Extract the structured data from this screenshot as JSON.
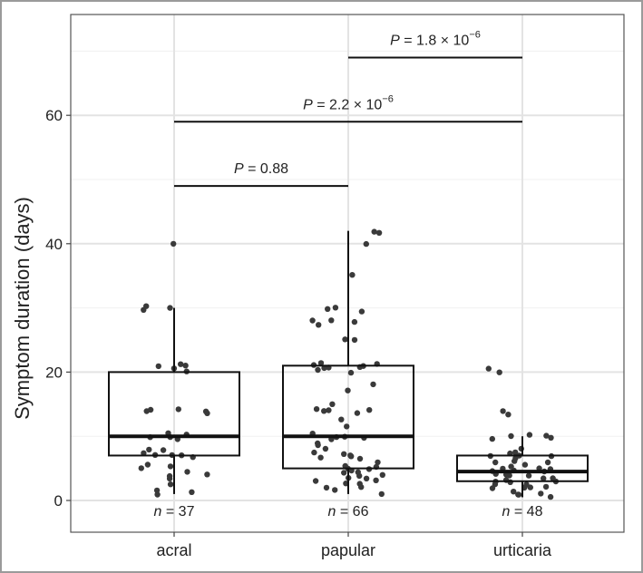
{
  "chart_data": {
    "type": "box",
    "ylabel": "Symptom duration (days)",
    "xlabel": "",
    "categories": [
      "acral",
      "papular",
      "urticaria"
    ],
    "ylim": [
      -4.5,
      75
    ],
    "yticks": [
      0,
      20,
      40,
      60
    ],
    "grid": true,
    "legend": "none",
    "colors": {
      "box_line": "#111111",
      "point": "#3a3a3a",
      "grid": "#e3e3e3",
      "frame": "#9a9a9a"
    },
    "boxes": [
      {
        "category": "acral",
        "n_label": "n = 37",
        "min": 1,
        "q1": 7,
        "median": 10,
        "q3": 20,
        "max": 30
      },
      {
        "category": "papular",
        "n_label": "n = 66",
        "min": 1,
        "q1": 5,
        "median": 10,
        "q3": 21,
        "max": 42
      },
      {
        "category": "urticaria",
        "n_label": "n = 48",
        "min": 0.5,
        "q1": 3,
        "median": 4.5,
        "q3": 7,
        "max": 10
      }
    ],
    "points": {
      "acral": [
        40,
        30.2,
        30,
        29.8,
        21.2,
        21,
        20.9,
        20.5,
        20,
        14.2,
        14,
        14,
        13.9,
        13.5,
        10.5,
        10.2,
        10,
        9.8,
        9.5,
        8,
        7.8,
        7.5,
        7.2,
        7,
        7,
        6.8,
        5.5,
        5.2,
        5,
        4.5,
        4,
        3.8,
        3.5,
        2.5,
        1.5,
        1.2,
        1
      ],
      "papular": [
        42,
        41.8,
        40,
        35,
        30,
        29.8,
        29.5,
        28.2,
        28,
        27.8,
        27.5,
        25.2,
        25,
        21.5,
        21.2,
        21,
        21,
        20.9,
        20.8,
        20.5,
        20.2,
        20,
        18,
        17,
        15,
        14.2,
        14,
        14,
        13.8,
        13.5,
        12.5,
        11.5,
        10.5,
        10,
        10,
        9.8,
        9.5,
        9,
        8.5,
        8,
        7.5,
        7.2,
        7,
        7,
        6.8,
        6.5,
        6,
        5.5,
        5.2,
        5,
        5,
        4.8,
        4.5,
        4.2,
        4,
        3.8,
        3.5,
        3.5,
        3.2,
        3,
        2.8,
        2.5,
        2,
        2,
        1.5,
        1
      ],
      "urticaria": [
        20.5,
        20,
        14,
        13.5,
        10.2,
        10,
        10,
        9.8,
        9.5,
        8,
        7.5,
        7.2,
        7,
        7,
        6.8,
        6.5,
        6,
        6,
        5.8,
        5.5,
        5.2,
        5,
        5,
        5,
        4.8,
        4.5,
        4.5,
        4.2,
        4,
        4,
        3.8,
        3.5,
        3.5,
        3.2,
        3,
        3,
        2.8,
        2.5,
        2.5,
        2.2,
        2,
        2,
        1.8,
        1.5,
        1.2,
        1,
        0.8,
        0.5
      ]
    },
    "comparisons": [
      {
        "from": "acral",
        "to": "papular",
        "y": 49,
        "label_prefix": "P",
        "label_value": " = 0.88",
        "exponent": ""
      },
      {
        "from": "acral",
        "to": "urticaria",
        "y": 59,
        "label_prefix": "P",
        "label_value": " = 2.2 × 10",
        "exponent": "−6"
      },
      {
        "from": "papular",
        "to": "urticaria",
        "y": 69,
        "label_prefix": "P",
        "label_value": " = 1.8 × 10",
        "exponent": "−6"
      }
    ]
  }
}
